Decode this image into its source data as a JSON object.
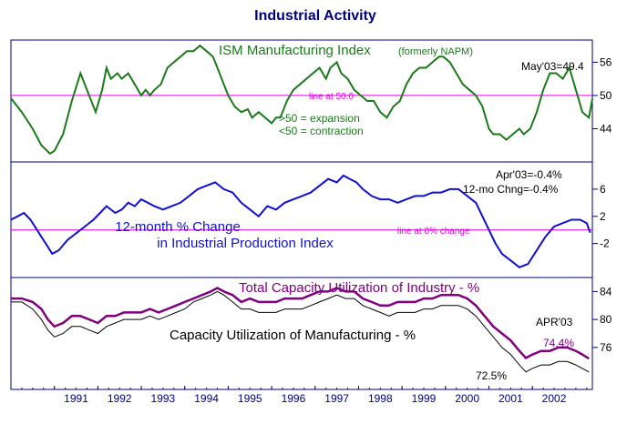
{
  "title": "Industrial Activity",
  "colors": {
    "title": "#000080",
    "ism": "#1a7a1a",
    "ip": "#1010d0",
    "total_cu": "#800080",
    "mfg_cu": "#000000",
    "reference": "#e000e0",
    "frame": "#000080"
  },
  "x_axis": {
    "year_labels": [
      "1991",
      "1992",
      "1993",
      "1994",
      "1995",
      "1996",
      "1997",
      "1998",
      "1999",
      "2000",
      "2001",
      "2002"
    ],
    "start": 1990.0,
    "end": 2003.38
  },
  "chart_data": [
    {
      "type": "line",
      "name": "ism-panel",
      "title": "ISM Manufacturing Index",
      "subtitle": "(formerly NAPM)",
      "annotations": {
        "last_value": "May'03=49.4",
        "reference_label": "line at 50.0",
        "note_expansion": ">50 = expansion",
        "note_contraction": "<50 = contraction"
      },
      "reference_line": 50,
      "ylim": [
        38,
        60
      ],
      "yticks": [
        44,
        50,
        56
      ],
      "series": [
        {
          "name": "ISM Manufacturing Index",
          "x": [
            1990.0,
            1990.25,
            1990.5,
            1990.7,
            1990.9,
            1991.0,
            1991.2,
            1991.4,
            1991.6,
            1991.8,
            1991.95,
            1992.1,
            1992.2,
            1992.3,
            1992.45,
            1992.55,
            1992.7,
            1992.85,
            1993.0,
            1993.1,
            1993.2,
            1993.3,
            1993.45,
            1993.6,
            1993.75,
            1993.9,
            1994.05,
            1994.2,
            1994.35,
            1994.5,
            1994.65,
            1994.8,
            1994.9,
            1995.0,
            1995.15,
            1995.3,
            1995.45,
            1995.55,
            1995.7,
            1995.85,
            1996.0,
            1996.1,
            1996.2,
            1996.35,
            1996.5,
            1996.65,
            1996.8,
            1996.95,
            1997.1,
            1997.25,
            1997.35,
            1997.5,
            1997.6,
            1997.75,
            1997.9,
            1998.05,
            1998.2,
            1998.35,
            1998.5,
            1998.65,
            1998.8,
            1998.95,
            1999.1,
            1999.25,
            1999.4,
            1999.55,
            1999.7,
            1999.85,
            1999.95,
            2000.1,
            2000.25,
            2000.4,
            2000.55,
            2000.7,
            2000.85,
            2001.0,
            2001.1,
            2001.25,
            2001.4,
            2001.55,
            2001.7,
            2001.8,
            2001.95,
            2002.1,
            2002.25,
            2002.4,
            2002.55,
            2002.7,
            2002.85,
            2003.0,
            2003.15,
            2003.3,
            2003.38
          ],
          "y": [
            49.5,
            47,
            44,
            41,
            39.5,
            40,
            43,
            49,
            54,
            50,
            47,
            51,
            55,
            53,
            54,
            53,
            54,
            52,
            50,
            51,
            50,
            51,
            52,
            55,
            56,
            57,
            58,
            58,
            59,
            58,
            57,
            54,
            52,
            50,
            48,
            47,
            47.5,
            46,
            47,
            46,
            45,
            46,
            46,
            49,
            51,
            52,
            53,
            54,
            55,
            53,
            55,
            56,
            54,
            53,
            51,
            50,
            49,
            49,
            47,
            46,
            48,
            49,
            52,
            54,
            55,
            55,
            56,
            57,
            57,
            56,
            54,
            52,
            51,
            50,
            48,
            44,
            43,
            43,
            42,
            43,
            44,
            43,
            44,
            47,
            51,
            54,
            54,
            53,
            55,
            51,
            47,
            46,
            49.4
          ]
        }
      ]
    },
    {
      "type": "line",
      "name": "industrial-production-panel",
      "title": "12-month % Change",
      "subtitle": "in Industrial Production Index",
      "annotations": {
        "last_value": "Apr'03=-0.4%",
        "chng_value": "12-mo Chng=-0.4%",
        "reference_label": "line at 0% change"
      },
      "reference_line": 0,
      "ylim": [
        -7,
        10
      ],
      "yticks": [
        -2,
        2,
        6
      ],
      "series": [
        {
          "name": "12-month % Change in Industrial Production Index",
          "x": [
            1990.0,
            1990.15,
            1990.3,
            1990.45,
            1990.6,
            1990.8,
            1990.95,
            1991.1,
            1991.3,
            1991.5,
            1991.7,
            1991.9,
            1992.05,
            1992.2,
            1992.4,
            1992.55,
            1992.7,
            1992.85,
            1993.0,
            1993.15,
            1993.3,
            1993.5,
            1993.7,
            1993.9,
            1994.1,
            1994.3,
            1994.5,
            1994.7,
            1994.9,
            1995.1,
            1995.3,
            1995.5,
            1995.7,
            1995.9,
            1996.1,
            1996.3,
            1996.5,
            1996.7,
            1996.9,
            1997.1,
            1997.3,
            1997.5,
            1997.65,
            1997.8,
            1997.95,
            1998.1,
            1998.3,
            1998.5,
            1998.7,
            1998.9,
            1999.1,
            1999.3,
            1999.5,
            1999.7,
            1999.9,
            2000.1,
            2000.3,
            2000.5,
            2000.7,
            2000.85,
            2001.0,
            2001.15,
            2001.3,
            2001.5,
            2001.7,
            2001.9,
            2002.1,
            2002.3,
            2002.5,
            2002.7,
            2002.9,
            2003.1,
            2003.25,
            2003.33
          ],
          "y": [
            1.5,
            2,
            2.5,
            1.5,
            0,
            -2,
            -3.5,
            -3,
            -1.5,
            -0.5,
            0.5,
            1.5,
            2.5,
            3.5,
            2.5,
            3,
            4,
            3.5,
            4.5,
            4,
            3.5,
            3,
            3.5,
            4,
            5,
            6,
            6.5,
            7,
            6,
            5.5,
            4,
            3,
            2,
            3.5,
            3,
            4,
            4.5,
            5,
            5.5,
            6.5,
            7.5,
            7,
            8,
            7.5,
            7,
            6,
            5,
            4.5,
            4.5,
            4,
            4.5,
            5,
            5,
            5.5,
            5.5,
            6,
            6,
            5,
            4,
            2,
            0,
            -2,
            -3.5,
            -4.5,
            -5.5,
            -5,
            -3,
            -1,
            0.5,
            1,
            1.5,
            1.5,
            1,
            -0.4
          ]
        }
      ]
    },
    {
      "type": "line",
      "name": "capacity-utilization-panel",
      "title": "Total Capacity Utilization of Industry - %",
      "subtitle": "Capacity Utilization of Manufacturing - %",
      "annotations": {
        "date_label": "APR'03",
        "total_last": "74.4%",
        "mfg_last": "72.5%"
      },
      "ylim": [
        70,
        86
      ],
      "yticks": [
        76,
        80,
        84
      ],
      "series": [
        {
          "name": "Total Capacity Utilization of Industry",
          "x": [
            1990.0,
            1990.25,
            1990.5,
            1990.7,
            1990.85,
            1991.0,
            1991.2,
            1991.4,
            1991.6,
            1991.8,
            1992.0,
            1992.2,
            1992.4,
            1992.6,
            1992.8,
            1993.0,
            1993.2,
            1993.4,
            1993.6,
            1993.8,
            1994.0,
            1994.2,
            1994.4,
            1994.6,
            1994.75,
            1994.9,
            1995.1,
            1995.3,
            1995.5,
            1995.7,
            1995.9,
            1996.1,
            1996.3,
            1996.5,
            1996.7,
            1996.9,
            1997.1,
            1997.3,
            1997.5,
            1997.7,
            1997.9,
            1998.1,
            1998.3,
            1998.5,
            1998.7,
            1998.9,
            1999.1,
            1999.3,
            1999.5,
            1999.7,
            1999.9,
            2000.1,
            2000.3,
            2000.5,
            2000.7,
            2000.9,
            2001.1,
            2001.3,
            2001.5,
            2001.7,
            2001.85,
            2002.0,
            2002.2,
            2002.4,
            2002.6,
            2002.8,
            2003.0,
            2003.15,
            2003.3
          ],
          "y": [
            83,
            83,
            82.5,
            81.5,
            80,
            79,
            79.5,
            80.5,
            80.5,
            80,
            79.5,
            80.5,
            80.5,
            81,
            81,
            81,
            81.5,
            81,
            81.5,
            82,
            82.5,
            83,
            83.5,
            84,
            84.5,
            84,
            83.5,
            82.5,
            83,
            82.5,
            82.5,
            82.5,
            83,
            83,
            83,
            83.5,
            84,
            84,
            84.5,
            84,
            84,
            83,
            82.5,
            82,
            82,
            82.5,
            82.5,
            82.5,
            83,
            83,
            83.5,
            83.5,
            83.5,
            83,
            82,
            80.5,
            79,
            78,
            77,
            75.5,
            74.5,
            75,
            75.5,
            75.5,
            76,
            76,
            75.5,
            75,
            74.4
          ]
        },
        {
          "name": "Capacity Utilization of Manufacturing",
          "x": [
            1990.0,
            1990.25,
            1990.5,
            1990.7,
            1990.85,
            1991.0,
            1991.2,
            1991.4,
            1991.6,
            1991.8,
            1992.0,
            1992.2,
            1992.4,
            1992.6,
            1992.8,
            1993.0,
            1993.2,
            1993.4,
            1993.6,
            1993.8,
            1994.0,
            1994.2,
            1994.4,
            1994.6,
            1994.75,
            1994.9,
            1995.1,
            1995.3,
            1995.5,
            1995.7,
            1995.9,
            1996.1,
            1996.3,
            1996.5,
            1996.7,
            1996.9,
            1997.1,
            1997.3,
            1997.5,
            1997.7,
            1997.9,
            1998.1,
            1998.3,
            1998.5,
            1998.7,
            1998.9,
            1999.1,
            1999.3,
            1999.5,
            1999.7,
            1999.9,
            2000.1,
            2000.3,
            2000.5,
            2000.7,
            2000.9,
            2001.1,
            2001.3,
            2001.5,
            2001.7,
            2001.85,
            2002.0,
            2002.2,
            2002.4,
            2002.6,
            2002.8,
            2003.0,
            2003.15,
            2003.3
          ],
          "y": [
            82.5,
            82.5,
            81.5,
            80,
            78.5,
            77.5,
            78,
            79,
            79,
            78.5,
            78,
            79,
            79.5,
            80,
            80,
            80,
            80.5,
            80,
            80.5,
            81,
            81.5,
            82.5,
            83,
            83.5,
            84,
            83.5,
            82.5,
            81.5,
            81.5,
            81,
            81,
            81,
            81.5,
            81.5,
            81.5,
            82,
            82.5,
            83,
            83.5,
            83,
            83,
            82,
            81.5,
            81,
            80.5,
            81,
            81,
            81,
            81.5,
            81.5,
            82,
            82,
            82,
            81.5,
            80.5,
            79,
            77.5,
            76,
            75,
            73.5,
            72.5,
            73,
            73.5,
            73.5,
            74,
            74,
            73.5,
            73,
            72.5
          ]
        }
      ]
    }
  ]
}
